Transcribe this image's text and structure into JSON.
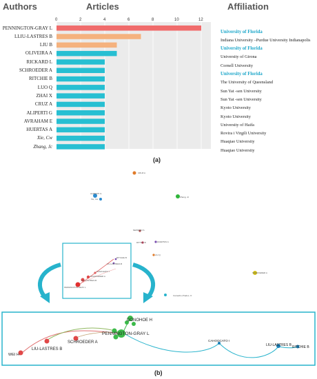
{
  "headers": {
    "authors": "Authors",
    "articles": "Articles",
    "affiliation": "Affiliation"
  },
  "panel_labels": {
    "a": "(a)",
    "b": "(b)"
  },
  "colors": {
    "top": "#f06b6b",
    "second": "#f5b27e",
    "rest": "#27bfd2",
    "grid_bg": "#ebebeb",
    "highlight": "#1ba6c9",
    "box": "#27b3cc"
  },
  "chart_data": {
    "type": "bar",
    "orientation": "horizontal",
    "xlim": [
      0,
      12
    ],
    "x_ticks": [
      "0",
      "2",
      "4",
      "6",
      "8",
      "10",
      "12"
    ],
    "categories": [
      "PENNINGTON-GRAY L",
      "LLIU-LASTRES B",
      "LIU B",
      "OLIVEIRA A",
      "RICKARD L",
      "SCHROEDER A",
      "RITCHIE B",
      "LUO Q",
      "ZHAI X",
      "CRUZ A",
      "ALIPERTI G",
      "AVRAHAM E",
      "HUERTAS A",
      "Xie, Cw",
      "Zhang, Jc"
    ],
    "values": [
      12,
      7,
      5,
      5,
      4,
      4,
      4,
      4,
      4,
      4,
      4,
      4,
      4,
      4,
      4
    ],
    "bar_colors": [
      "#f06b6b",
      "#f5b27e",
      "#f5b27e",
      "#27bfd2",
      "#27bfd2",
      "#27bfd2",
      "#27bfd2",
      "#27bfd2",
      "#27bfd2",
      "#27bfd2",
      "#27bfd2",
      "#27bfd2",
      "#27bfd2",
      "#27bfd2",
      "#27bfd2"
    ],
    "affiliations": [
      {
        "text": "University of Florida",
        "highlight": true
      },
      {
        "text": "Indiana University –Purdue University Indianapolis",
        "highlight": false
      },
      {
        "text": "University of Florida",
        "highlight": true
      },
      {
        "text": "University of Girona",
        "highlight": false
      },
      {
        "text": "Cornell University",
        "highlight": false
      },
      {
        "text": "University of Florida",
        "highlight": true
      },
      {
        "text": "The University of Queensland",
        "highlight": false
      },
      {
        "text": "Sun Yat -sen University",
        "highlight": false
      },
      {
        "text": "Sun Yat -sen University",
        "highlight": false
      },
      {
        "text": "Kyoto University",
        "highlight": false
      },
      {
        "text": "Kyoto University",
        "highlight": false
      },
      {
        "text": "University of Haifa",
        "highlight": false
      },
      {
        "text": "Rovira i Virgili University",
        "highlight": false
      },
      {
        "text": "Huaqiao University",
        "highlight": false
      },
      {
        "text": "Huaqiao University",
        "highlight": false
      }
    ]
  },
  "network": {
    "scatter_labels": [
      "CRUZ A",
      "ALIPERTI G",
      "Xie, Cw",
      "Zhang, Jc",
      "NEWMAN S",
      "RITTER B",
      "HUERTAS A",
      "LIU Q",
      "SCHROEDER A",
      "Camacho-Pradoc, O",
      "RITCHIE B",
      "LIU-LASTRES B",
      "CAMCHATO I",
      "PENNINGTON-GRAY L"
    ],
    "inset_labels": [
      "RITCHIE B",
      "LIU-LASTRES B",
      "CAMCHATO I",
      "SCHROEDER A",
      "LIU-LASTRES B",
      "PENNINGTON-GRAY L"
    ],
    "bottom_labels": [
      "DONOHOE H",
      "PENNINGTON-GRAY L",
      "SCHROEDER A",
      "LIU-LASTRES B",
      "WEI H",
      "CAHOOCATO I",
      "LIU-LASTRES B",
      "RITCHIE B"
    ]
  }
}
